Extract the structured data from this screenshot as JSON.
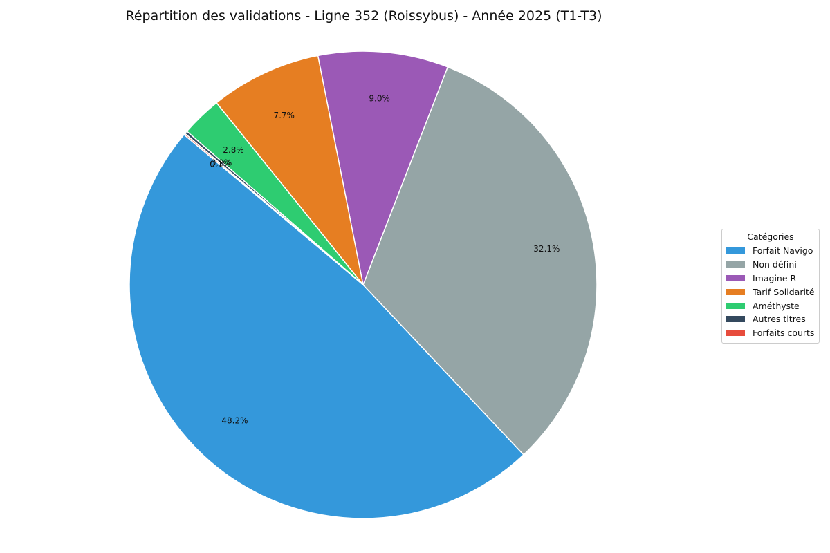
{
  "chart_data": {
    "type": "pie",
    "title": "Répartition des validations - Ligne 352 (Roissybus) - Année 2025 (T1-T3)",
    "legend_title": "Catégories",
    "legend_position": "right",
    "start_angle_deg": 140,
    "direction": "counterclockwise",
    "slices": [
      {
        "label": "Forfait Navigo",
        "value": 48.2,
        "pct_label": "48.2%",
        "color": "#3498db"
      },
      {
        "label": "Non défini",
        "value": 32.1,
        "pct_label": "32.1%",
        "color": "#95a5a6"
      },
      {
        "label": "Imagine R",
        "value": 9.0,
        "pct_label": "9.0%",
        "color": "#9b59b6"
      },
      {
        "label": "Tarif Solidarité",
        "value": 7.7,
        "pct_label": "7.7%",
        "color": "#e67e22"
      },
      {
        "label": "Améthyste",
        "value": 2.8,
        "pct_label": "2.8%",
        "color": "#2ecc71"
      },
      {
        "label": "Autres titres",
        "value": 0.2,
        "pct_label": "0.2%",
        "color": "#34495e"
      },
      {
        "label": "Forfaits courts",
        "value": 0.1,
        "pct_label": "0.1%",
        "color": "#e74c3c"
      }
    ]
  }
}
